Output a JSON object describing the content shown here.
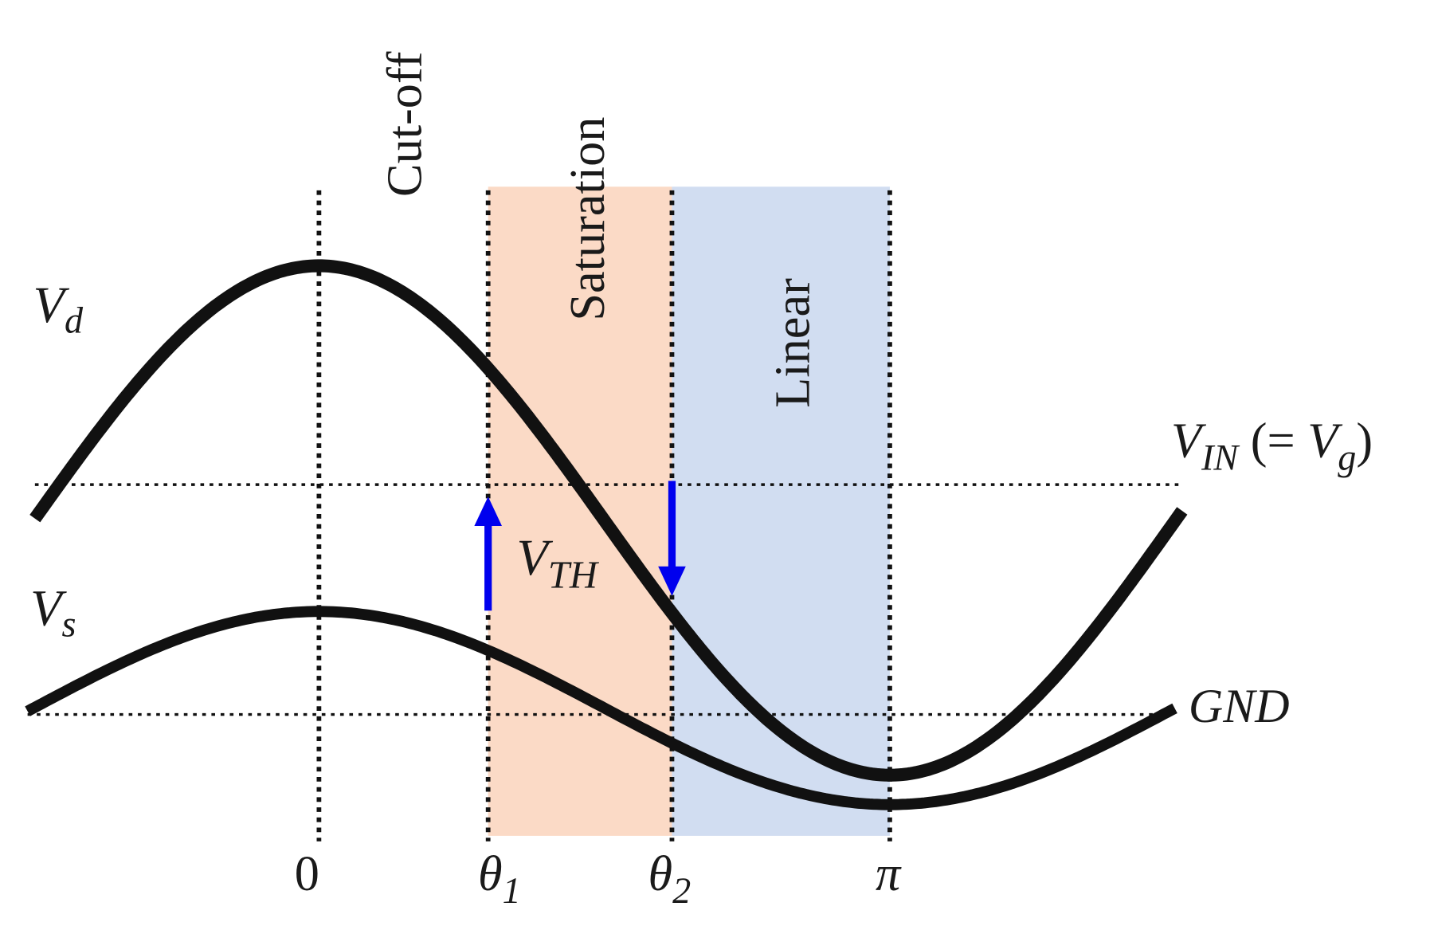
{
  "regions": {
    "cutoff": "Cut-off",
    "saturation": "Saturation",
    "linear": "Linear"
  },
  "signals": {
    "vd": {
      "main": "V",
      "sub": "d"
    },
    "vs": {
      "main": "V",
      "sub": "s"
    },
    "vin": {
      "main": "V",
      "sub": "IN",
      "rest_open": " (= ",
      "g_main": "V",
      "g_sub": "g",
      "rest_close": ")"
    },
    "vth": {
      "main": "V",
      "sub": "TH"
    },
    "gnd": "GND"
  },
  "phase_labels": {
    "zero": "0",
    "theta1": {
      "main": "θ",
      "sub": "1"
    },
    "theta2": {
      "main": "θ",
      "sub": "2"
    },
    "pi": "π"
  }
}
